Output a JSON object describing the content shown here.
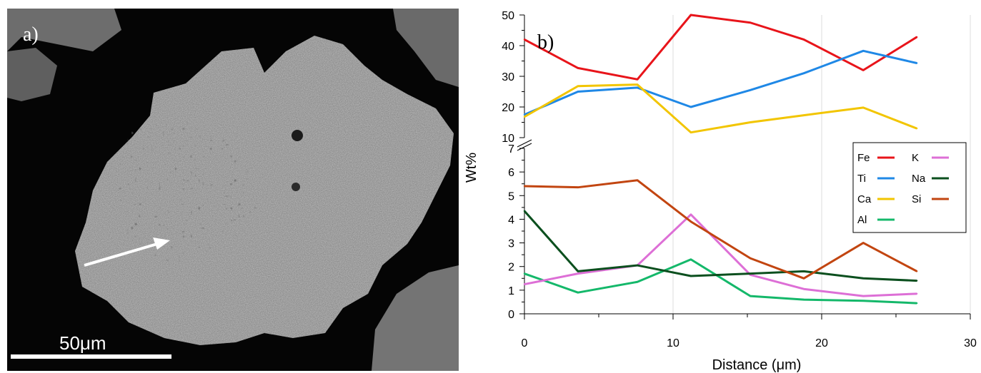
{
  "panel_a": {
    "label": "a)",
    "scale_bar_label": "50μm",
    "image": "sem-micrograph-of-porous-particle-with-arrow"
  },
  "chart_data": {
    "type": "line",
    "panel_label": "b)",
    "xlabel": "Distance (μm)",
    "ylabel": "Wt%",
    "xlim": [
      0,
      30
    ],
    "x_ticks": [
      0,
      10,
      20,
      30
    ],
    "y_ticks_lower": [
      0,
      1,
      2,
      3,
      4,
      5,
      6,
      7
    ],
    "y_ticks_upper": [
      10,
      20,
      30,
      40,
      50
    ],
    "y_axis_break": [
      7,
      10
    ],
    "x": [
      0,
      3.6,
      7.6,
      11.2,
      15.2,
      18.8,
      22.8,
      26.4
    ],
    "grid": "vertical",
    "legend_position": "right",
    "series": [
      {
        "name": "Fe",
        "color": "#e8141a",
        "values": [
          42.0,
          32.7,
          29.0,
          50.0,
          47.5,
          42.0,
          32.0,
          42.8
        ]
      },
      {
        "name": "Ti",
        "color": "#1f88e6",
        "values": [
          17.5,
          25.0,
          26.3,
          20.0,
          25.5,
          31.0,
          38.3,
          34.3
        ]
      },
      {
        "name": "Ca",
        "color": "#f2c500",
        "values": [
          16.8,
          26.8,
          27.3,
          11.7,
          15.0,
          17.3,
          19.8,
          13.0
        ]
      },
      {
        "name": "Al",
        "color": "#14b86a",
        "values": [
          1.7,
          0.9,
          1.35,
          2.3,
          0.75,
          0.6,
          0.55,
          0.45
        ]
      },
      {
        "name": "K",
        "color": "#dd6fd6",
        "values": [
          1.25,
          1.7,
          2.05,
          4.2,
          1.65,
          1.05,
          0.75,
          0.85
        ]
      },
      {
        "name": "Na",
        "color": "#0b4f1e",
        "values": [
          4.35,
          1.8,
          2.05,
          1.6,
          1.7,
          1.8,
          1.5,
          1.4
        ]
      },
      {
        "name": "Si",
        "color": "#c24510",
        "values": [
          5.4,
          5.35,
          5.65,
          3.9,
          2.35,
          1.5,
          3.0,
          1.8
        ]
      }
    ]
  }
}
